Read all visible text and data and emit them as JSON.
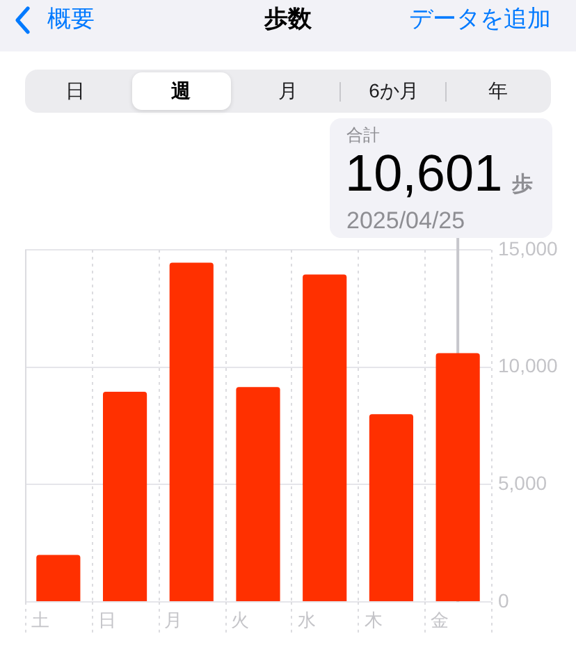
{
  "chart_data": {
    "type": "bar",
    "title": "歩数",
    "annotations": [
      "概要",
      "データを追加",
      "日",
      "週",
      "月",
      "6か月",
      "年",
      "合計",
      "10,601",
      "歩",
      "2025/04/25"
    ],
    "categories": [
      "土",
      "日",
      "月",
      "火",
      "水",
      "木",
      "金"
    ],
    "values": [
      2000,
      8950,
      14450,
      9150,
      13950,
      8000,
      10601
    ],
    "color": "#ff3000",
    "ylim": [
      0,
      15000
    ],
    "yticks": [
      {
        "value": 0,
        "label": "0"
      },
      {
        "value": 5000,
        "label": "5,000"
      },
      {
        "value": 10000,
        "label": "10,000"
      },
      {
        "value": 15000,
        "label": "15,000"
      }
    ],
    "grid": true,
    "ref_lines": [
      {
        "axis": "x",
        "value": "金",
        "color": "#c7c7cc"
      }
    ]
  }
}
